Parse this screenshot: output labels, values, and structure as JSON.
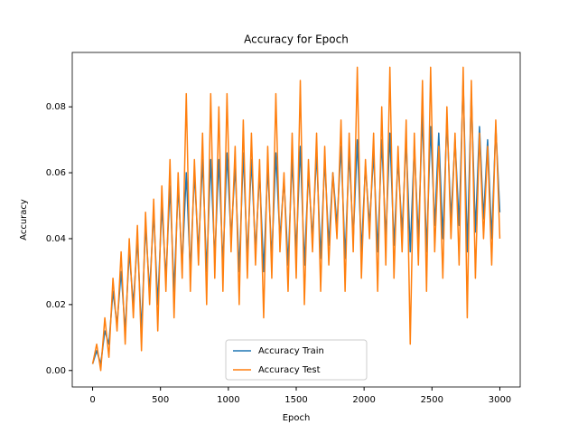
{
  "chart_data": {
    "type": "line",
    "title": "Accuracy for Epoch",
    "xlabel": "Epoch",
    "ylabel": "Accuracy",
    "x": [
      0,
      30,
      60,
      90,
      120,
      150,
      180,
      210,
      240,
      270,
      300,
      330,
      360,
      390,
      420,
      450,
      480,
      510,
      540,
      570,
      600,
      630,
      660,
      690,
      720,
      750,
      780,
      810,
      840,
      870,
      900,
      930,
      960,
      990,
      1020,
      1050,
      1080,
      1110,
      1140,
      1170,
      1200,
      1230,
      1260,
      1290,
      1320,
      1350,
      1380,
      1410,
      1440,
      1470,
      1500,
      1530,
      1560,
      1590,
      1620,
      1650,
      1680,
      1710,
      1740,
      1770,
      1800,
      1830,
      1860,
      1890,
      1920,
      1950,
      1980,
      2010,
      2040,
      2070,
      2100,
      2130,
      2160,
      2190,
      2220,
      2250,
      2280,
      2310,
      2340,
      2370,
      2400,
      2430,
      2460,
      2490,
      2520,
      2550,
      2580,
      2610,
      2640,
      2670,
      2700,
      2730,
      2760,
      2790,
      2820,
      2850,
      2880,
      2910,
      2940,
      2970,
      3000
    ],
    "series": [
      {
        "name": "Accuracy Train",
        "color": "#1f77b4",
        "values": [
          0.002,
          0.006,
          0.002,
          0.012,
          0.008,
          0.024,
          0.014,
          0.03,
          0.012,
          0.036,
          0.02,
          0.04,
          0.012,
          0.044,
          0.024,
          0.048,
          0.02,
          0.05,
          0.028,
          0.056,
          0.024,
          0.056,
          0.032,
          0.06,
          0.03,
          0.06,
          0.036,
          0.064,
          0.03,
          0.064,
          0.034,
          0.064,
          0.032,
          0.066,
          0.04,
          0.062,
          0.03,
          0.066,
          0.034,
          0.064,
          0.036,
          0.06,
          0.03,
          0.062,
          0.034,
          0.066,
          0.04,
          0.058,
          0.032,
          0.064,
          0.036,
          0.068,
          0.032,
          0.06,
          0.04,
          0.066,
          0.034,
          0.064,
          0.038,
          0.06,
          0.044,
          0.068,
          0.034,
          0.066,
          0.04,
          0.07,
          0.036,
          0.062,
          0.044,
          0.066,
          0.036,
          0.07,
          0.04,
          0.072,
          0.038,
          0.064,
          0.042,
          0.07,
          0.036,
          0.068,
          0.04,
          0.078,
          0.036,
          0.074,
          0.044,
          0.072,
          0.04,
          0.076,
          0.046,
          0.07,
          0.044,
          0.088,
          0.036,
          0.084,
          0.042,
          0.074,
          0.046,
          0.07,
          0.04,
          0.074,
          0.048
        ]
      },
      {
        "name": "Accuracy Test",
        "color": "#ff7f0e",
        "values": [
          0.002,
          0.008,
          0.0,
          0.016,
          0.004,
          0.028,
          0.012,
          0.036,
          0.008,
          0.04,
          0.016,
          0.044,
          0.006,
          0.048,
          0.02,
          0.052,
          0.012,
          0.056,
          0.024,
          0.064,
          0.016,
          0.06,
          0.028,
          0.084,
          0.024,
          0.064,
          0.032,
          0.072,
          0.02,
          0.084,
          0.028,
          0.08,
          0.024,
          0.084,
          0.036,
          0.068,
          0.02,
          0.076,
          0.028,
          0.072,
          0.032,
          0.064,
          0.016,
          0.068,
          0.028,
          0.084,
          0.036,
          0.06,
          0.024,
          0.072,
          0.028,
          0.088,
          0.02,
          0.064,
          0.036,
          0.072,
          0.024,
          0.068,
          0.032,
          0.06,
          0.04,
          0.076,
          0.024,
          0.072,
          0.036,
          0.092,
          0.028,
          0.064,
          0.04,
          0.072,
          0.024,
          0.08,
          0.032,
          0.092,
          0.028,
          0.068,
          0.036,
          0.076,
          0.008,
          0.072,
          0.032,
          0.088,
          0.024,
          0.092,
          0.036,
          0.068,
          0.028,
          0.08,
          0.04,
          0.072,
          0.032,
          0.092,
          0.016,
          0.088,
          0.028,
          0.072,
          0.04,
          0.068,
          0.032,
          0.076,
          0.04
        ]
      }
    ],
    "xlim": [
      -150,
      3150
    ],
    "ylim": [
      -0.005,
      0.0965
    ],
    "xticks": [
      0,
      500,
      1000,
      1500,
      2000,
      2500,
      3000
    ],
    "yticks": [
      {
        "value": 0,
        "label": "0.00"
      },
      {
        "value": 0.02,
        "label": "0.02"
      },
      {
        "value": 0.04,
        "label": "0.04"
      },
      {
        "value": 0.06,
        "label": "0.06"
      },
      {
        "value": 0.08,
        "label": "0.08"
      }
    ],
    "legend": "lower center"
  }
}
